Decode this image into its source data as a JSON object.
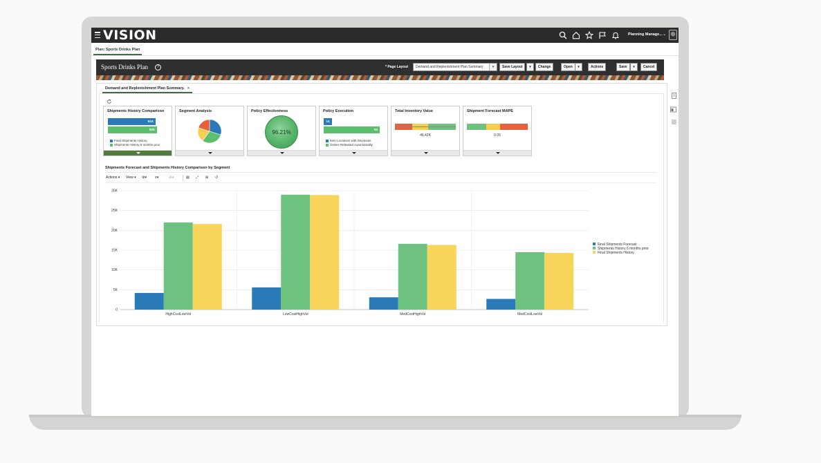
{
  "app": {
    "logo": "VISION",
    "user": "Planning Manage...",
    "icons": [
      "search-icon",
      "home-icon",
      "star-icon",
      "flag-icon",
      "bell-icon"
    ]
  },
  "breadcrumb": {
    "plan_tab": "Plan: Sports Drinks Plan"
  },
  "title_bar": {
    "title": "Sports Drinks Plan",
    "page_layout_label": "* Page Layout",
    "page_layout_value": "Demand and Replenishment Plan Summary",
    "buttons": {
      "save_layout": "Save Layout",
      "change": "Change",
      "open": "Open",
      "actions": "Actions",
      "save": "Save",
      "cancel": "Cancel"
    }
  },
  "summary_tab": {
    "label": "Demand and Replenishment Plan Summary.",
    "close": "×"
  },
  "infolets": {
    "shipments_history": {
      "title": "Shipments History Comparison",
      "bar1_value": "81K",
      "bar2_value": "83K",
      "legend": [
        "Final Shipments History",
        "Shipments History 6 months prior"
      ]
    },
    "segment_analysis": {
      "title": "Segment Analysis",
      "slices": [
        {
          "value": 30,
          "color": "#2a7ab8"
        },
        {
          "value": 30,
          "color": "#5cbf6e"
        },
        {
          "value": 20,
          "color": "#f6cf4f"
        },
        {
          "value": 20,
          "color": "#e8613d"
        }
      ]
    },
    "policy_effectiveness": {
      "title": "Policy Effectiveness",
      "value": "96.21%"
    },
    "policy_execution": {
      "title": "Policy Execution",
      "bar1_value": "14",
      "bar2_value": "94",
      "legend": [
        "Item Locations with Stockouts",
        "Orders Released Automatically"
      ]
    },
    "total_inventory": {
      "title": "Total Inventory Value",
      "value": "46.42K"
    },
    "shipment_forecast_mape": {
      "title": "Shipment Forecast MAPE",
      "value": "0.05"
    }
  },
  "chart_section": {
    "title": "Shipments Forecast and Shipments History Comparison by Segment",
    "toolbar": {
      "actions": "Actions",
      "view": "View"
    }
  },
  "chart_data": {
    "type": "bar",
    "categories": [
      "HighCostLowVol",
      "LowCostHighVol",
      "MedCostHighVol",
      "MedCostLowVol"
    ],
    "series": [
      {
        "name": "Final Shipments Forecast",
        "color": "#2a7ab8",
        "values": [
          4200,
          5600,
          3100,
          2700
        ]
      },
      {
        "name": "Shipments History 6 months prior",
        "color": "#6cc27e",
        "values": [
          22000,
          29000,
          16600,
          14500
        ]
      },
      {
        "name": "Final Shipments History",
        "color": "#f9d45a",
        "values": [
          21600,
          28900,
          16300,
          14300
        ]
      }
    ],
    "yticks": [
      "0",
      "5K",
      "10K",
      "15K",
      "20K",
      "25K",
      "30K"
    ],
    "ylim": [
      0,
      30000
    ],
    "grid": true,
    "legend_position": "right"
  }
}
